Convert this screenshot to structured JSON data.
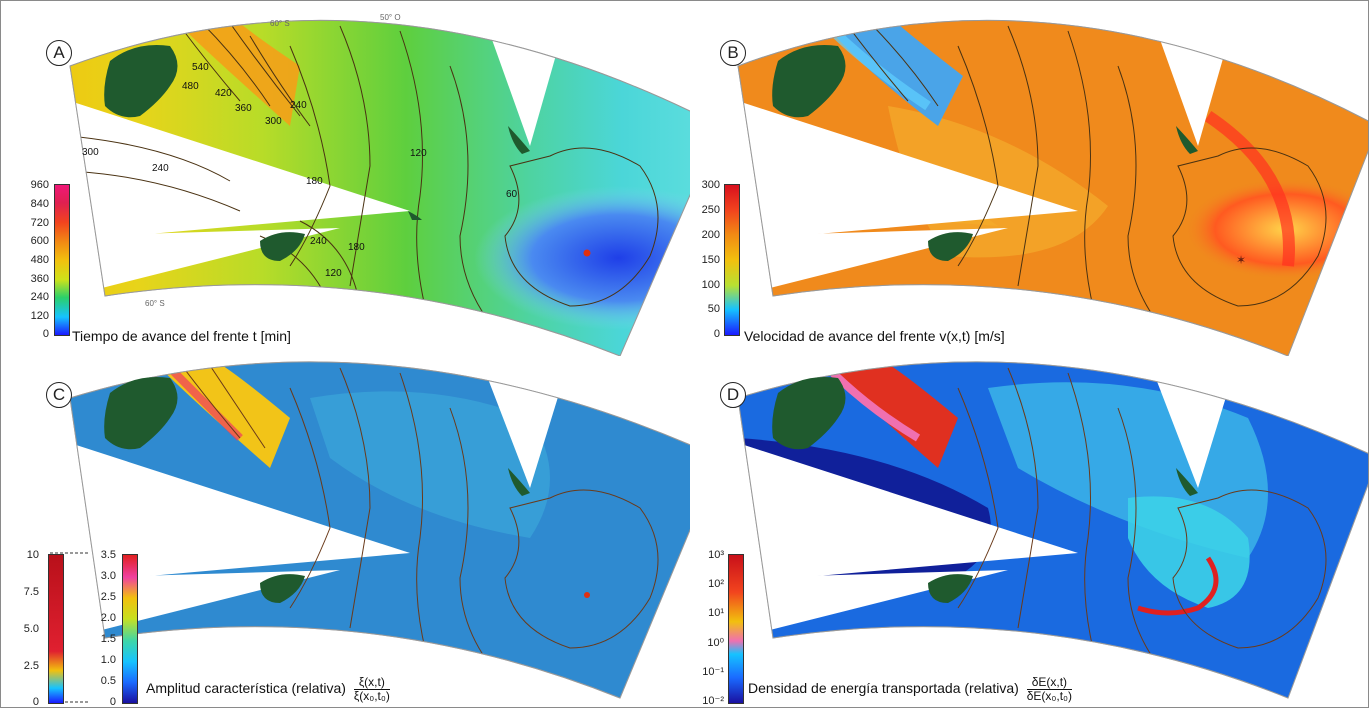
{
  "panels": [
    {
      "letter": "A",
      "caption": "Tiempo de avance del frente  t [min]",
      "ticks": [
        "960",
        "840",
        "720",
        "600",
        "480",
        "360",
        "240",
        "120",
        "0"
      ],
      "contours": [
        "540",
        "480",
        "420",
        "360",
        "300",
        "240",
        "300",
        "240",
        "180",
        "120",
        "60",
        "240",
        "180",
        "120"
      ]
    },
    {
      "letter": "B",
      "caption": "Velocidad de avance del frente  v(x,t) [m/s]",
      "ticks": [
        "300",
        "250",
        "200",
        "150",
        "100",
        "50",
        "0"
      ]
    },
    {
      "letter": "C",
      "caption": "Amplitud característica (relativa)",
      "frac_num": "ξ(x,t)",
      "frac_den": "ξ(x₀,t₀)",
      "ticks_outer": [
        "10",
        "7.5",
        "5.0",
        "2.5",
        "0"
      ],
      "ticks_inner": [
        "3.5",
        "3.0",
        "2.5",
        "2.0",
        "1.5",
        "1.0",
        "0.5",
        "0"
      ]
    },
    {
      "letter": "D",
      "caption": "Densidad de energía transportada (relativa)",
      "frac_num": "δE(x,t)",
      "frac_den": "δE(x₀,t₀)",
      "ticks": [
        "10³",
        "10²",
        "10¹",
        "10⁰",
        "10⁻¹",
        "10⁻²"
      ]
    }
  ],
  "graticule": {
    "lat_top": "60° S",
    "lat_bottom": "60° S",
    "lon_top": "50° O"
  },
  "colors": {
    "land": "#1f5a2e",
    "contour": "#5a3a1a",
    "epicenter": "#e03010"
  }
}
